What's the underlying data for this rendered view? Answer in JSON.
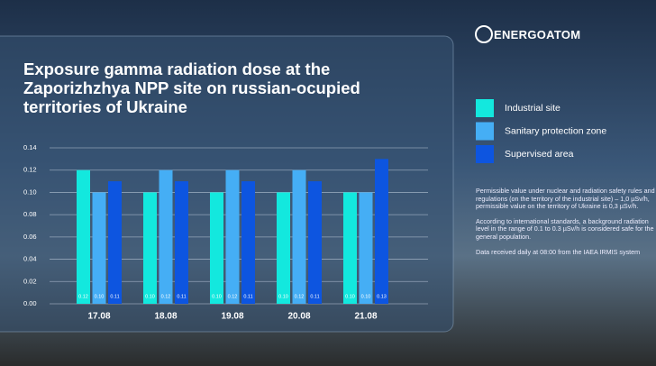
{
  "brand": "ENERGOATOM",
  "chart_data": {
    "type": "bar",
    "title": "Exposure gamma radiation dose at the Zaporizhzhya NPP site on russian-ocupied territories of Ukraine",
    "categories": [
      "17.08",
      "18.08",
      "19.08",
      "20.08",
      "21.08"
    ],
    "series": [
      {
        "name": "Industrial site",
        "color": "#13e8de",
        "values": [
          0.12,
          0.1,
          0.1,
          0.1,
          0.1
        ],
        "value_labels": [
          "0.12",
          "0.10",
          "0.10",
          "0.10",
          "0.10"
        ]
      },
      {
        "name": "Sanitary protection zone",
        "color": "#45aef5",
        "values": [
          0.1,
          0.12,
          0.12,
          0.12,
          0.1
        ],
        "value_labels": [
          "0.10",
          "0.12",
          "0.12",
          "0.12",
          "0.10"
        ]
      },
      {
        "name": "Supervised area",
        "color": "#0d55e0",
        "values": [
          0.11,
          0.11,
          0.11,
          0.11,
          0.13
        ],
        "value_labels": [
          "0.11",
          "0.11",
          "0.11",
          "0.11",
          "0.13"
        ]
      }
    ],
    "ylim": [
      0,
      0.14
    ],
    "yticks": [
      {
        "value": 0,
        "label": "0.00"
      },
      {
        "value": 0.02,
        "label": "0.02"
      },
      {
        "value": 0.04,
        "label": "0.04"
      },
      {
        "value": 0.06,
        "label": "0.06"
      },
      {
        "value": 0.08,
        "label": "0.08"
      },
      {
        "value": 0.1,
        "label": "0.10"
      },
      {
        "value": 0.12,
        "label": "0.12"
      },
      {
        "value": 0.14,
        "label": "0.14"
      }
    ],
    "grid": true
  },
  "notes": [
    "Permissible value under nuclear and radiation safety rules and regulations (on the territory of the industrial site) – 1,0 µSv/h, permissible value on the territory of Ukraine is 0,3 µSv/h.",
    "According to international standards, a background radiation level in the range of 0.1 to 0.3 µSv/h is considered safe for the general population.",
    "Data received daily at 08:00 from the IAEA IRMIS system"
  ]
}
